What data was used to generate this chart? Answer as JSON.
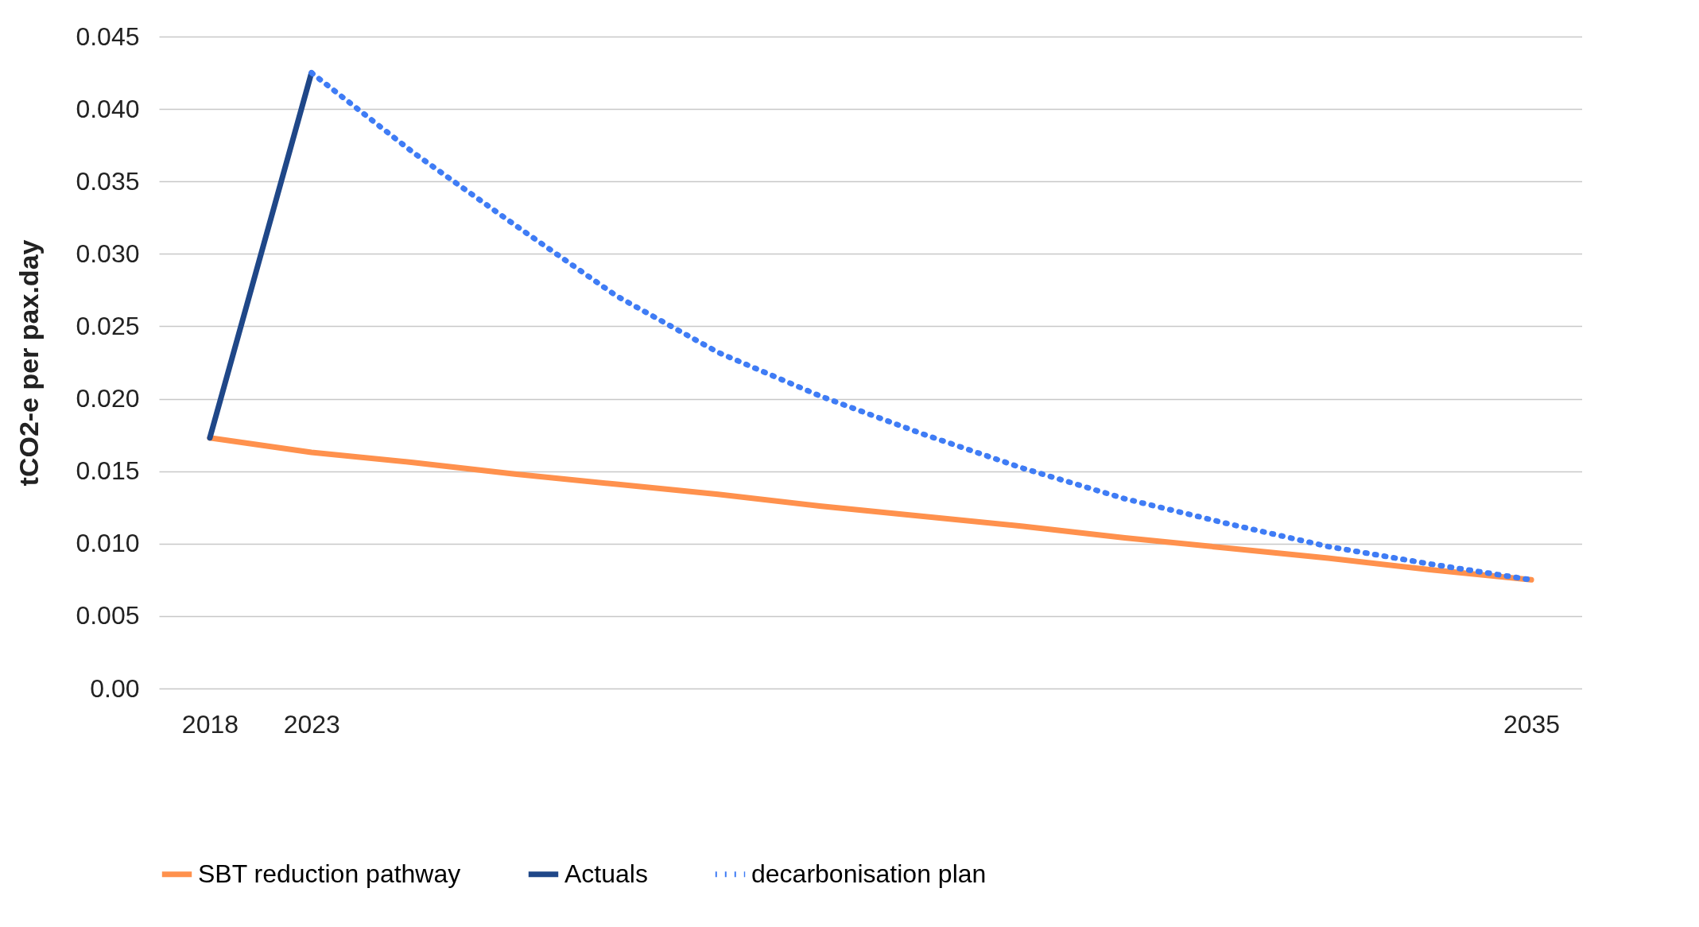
{
  "chart_data": {
    "type": "line",
    "ylabel": "tCO2-e per pax.day",
    "categories": [
      "2018",
      "2023",
      null,
      null,
      null,
      null,
      null,
      null,
      null,
      null,
      null,
      null,
      null,
      "2035"
    ],
    "series": [
      {
        "name": "SBT reduction pathway",
        "color": "#ff914d",
        "line_style": "solid",
        "values": [
          0.0173,
          0.0163,
          0.0156,
          0.0148,
          0.0141,
          0.0134,
          0.0126,
          0.0119,
          0.0112,
          0.0104,
          0.0097,
          0.009,
          0.0082,
          0.0075
        ]
      },
      {
        "name": "Actuals",
        "color": "#1f4788",
        "line_style": "solid",
        "values": [
          0.0173,
          0.0425,
          null,
          null,
          null,
          null,
          null,
          null,
          null,
          null,
          null,
          null,
          null,
          null
        ]
      },
      {
        "name": "decarbonisation plan",
        "color": "#3f7cf5",
        "line_style": "dotted",
        "values": [
          null,
          0.0425,
          0.037,
          0.032,
          0.0271,
          0.0232,
          0.0202,
          0.0176,
          0.0152,
          0.0131,
          0.0114,
          0.0098,
          0.0086,
          0.0075
        ]
      }
    ],
    "ylim": [
      0,
      0.045
    ],
    "yticks": [
      {
        "value": 0,
        "label": "0.00"
      },
      0.005,
      {
        "value": 0.01,
        "label": "0.010"
      },
      0.015,
      {
        "value": 0.02,
        "label": "0.020"
      },
      0.025,
      {
        "value": 0.03,
        "label": "0.030"
      },
      0.035,
      {
        "value": 0.04,
        "label": "0.040"
      },
      0.045
    ],
    "grid": "y",
    "legend": "bottom"
  }
}
